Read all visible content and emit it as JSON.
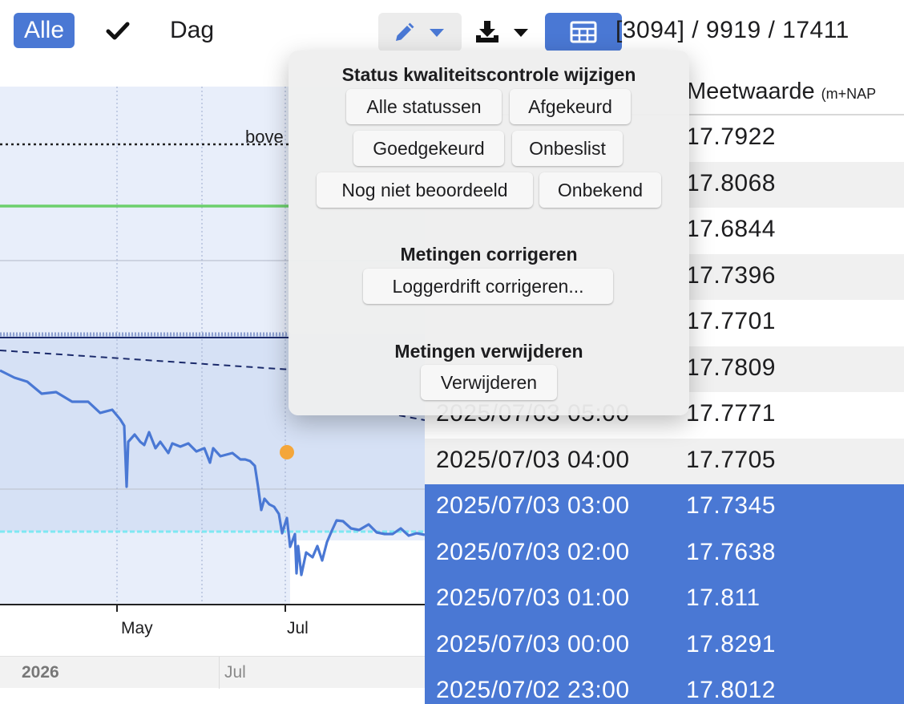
{
  "toolbar": {
    "all_button": "Alle",
    "period_label": "Dag",
    "counter": "[3094] / 9919 / 17411"
  },
  "icons": {
    "check": "check-icon",
    "edit": "pencil-icon",
    "download": "download-icon",
    "table": "table-icon"
  },
  "colors": {
    "accent": "#4a78d4",
    "series": "#4a78d4",
    "green_line": "#6ccf6c",
    "highlight_point": "#f4a63a",
    "cyan_line": "#7ee8f2"
  },
  "chart": {
    "threshold_label": "bove",
    "x_ticks": [
      "May",
      "Jul"
    ],
    "year_label": "2026",
    "year_month_label": "Jul"
  },
  "chart_data": {
    "type": "line",
    "x_ticks": [
      "May",
      "Jul"
    ],
    "annotations": [
      "bove"
    ],
    "grid": true
  },
  "popup": {
    "status_title": "Status kwaliteitscontrole wijzigen",
    "status_buttons": [
      "Alle statussen",
      "Afgekeurd",
      "Goedgekeurd",
      "Onbeslist",
      "Nog niet beoordeeld",
      "Onbekend"
    ],
    "correct_title": "Metingen corrigeren",
    "correct_button": "Loggerdrift corrigeren...",
    "delete_title": "Metingen verwijderen",
    "delete_button": "Verwijderen"
  },
  "table": {
    "value_header": "Meetwaarde",
    "value_unit": "(m+NAP",
    "rows": [
      {
        "time": "",
        "value": "17.7922"
      },
      {
        "time": "",
        "value": "17.8068"
      },
      {
        "time": "",
        "value": "17.6844"
      },
      {
        "time": "",
        "value": "17.7396"
      },
      {
        "time": "",
        "value": "17.7701"
      },
      {
        "time": "",
        "value": "17.7809"
      },
      {
        "time": "2025/07/03 05:00",
        "value": "17.7771"
      },
      {
        "time": "2025/07/03 04:00",
        "value": "17.7705"
      },
      {
        "time": "2025/07/03 03:00",
        "value": "17.7345"
      },
      {
        "time": "2025/07/03 02:00",
        "value": "17.7638"
      },
      {
        "time": "2025/07/03 01:00",
        "value": "17.811"
      },
      {
        "time": "2025/07/03 00:00",
        "value": "17.8291"
      },
      {
        "time": "2025/07/02 23:00",
        "value": "17.8012"
      }
    ]
  }
}
